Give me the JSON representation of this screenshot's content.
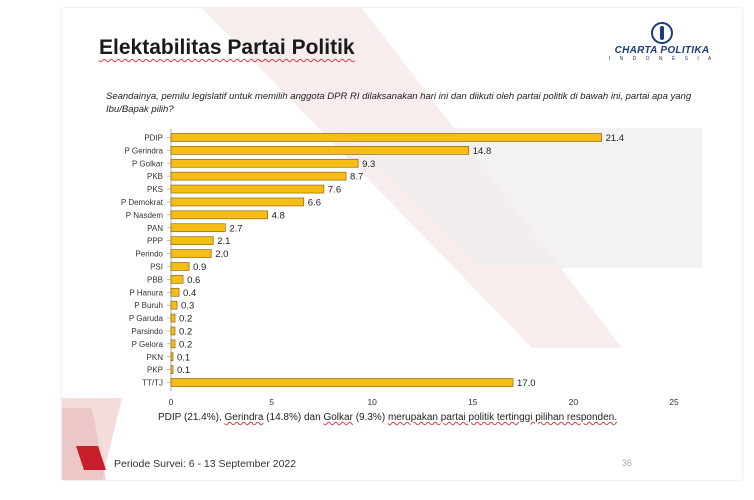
{
  "slide": {
    "title": "Elektabilitas Partai Politik",
    "logo_name": "CHARTA POLITIKA",
    "logo_sub": "I N D O N E S I A",
    "question": "Seandainya, pemilu legislatif untuk memilih anggota DPR RI dilaksanakan hari ini dan diikuti oleh partai politik di bawah ini, partai apa yang Ibu/Bapak pilih?",
    "note": {
      "p1": "PDIP (21.4%), ",
      "p2": "Gerindra",
      "p3": " (14.8%) dan ",
      "p4": "Golkar",
      "p5": " (9.3%) ",
      "p6": "merupakan partai politik tertinggi pilihan responden."
    },
    "period": "Periode Survei: 6 - 13 September 2022",
    "page_number": "36"
  },
  "colors": {
    "bar_fill": "#f6bd16",
    "bar_stroke": "#7a5a00",
    "accent_red": "#c8202a"
  },
  "chart_data": {
    "type": "bar",
    "orientation": "horizontal",
    "categories": [
      "PDIP",
      "P Gerindra",
      "P Golkar",
      "PKB",
      "PKS",
      "P Demokrat",
      "P Nasdem",
      "PAN",
      "PPP",
      "Perindo",
      "PSI",
      "PBB",
      "P Hanura",
      "P Buruh",
      "P Garuda",
      "Parsindo",
      "P Gelora",
      "PKN",
      "PKP",
      "TT/TJ"
    ],
    "values": [
      21.4,
      14.8,
      9.3,
      8.7,
      7.6,
      6.6,
      4.8,
      2.7,
      2.1,
      2.0,
      0.9,
      0.6,
      0.4,
      0.3,
      0.2,
      0.2,
      0.2,
      0.1,
      0.1,
      17.0
    ],
    "value_labels": [
      "21.4",
      "14.8",
      "9.3",
      "8.7",
      "7.6",
      "6.6",
      "4.8",
      "2.7",
      "2.1",
      "2.0",
      "0.9",
      "0.6",
      "0.4",
      "0.3",
      "0.2",
      "0.2",
      "0.2",
      "0.1",
      "0.1",
      "17.0"
    ],
    "xlim": [
      0,
      25
    ],
    "xticks": [
      "0",
      "5",
      "10",
      "15",
      "20",
      "25"
    ],
    "grid": false,
    "legend": "none"
  }
}
